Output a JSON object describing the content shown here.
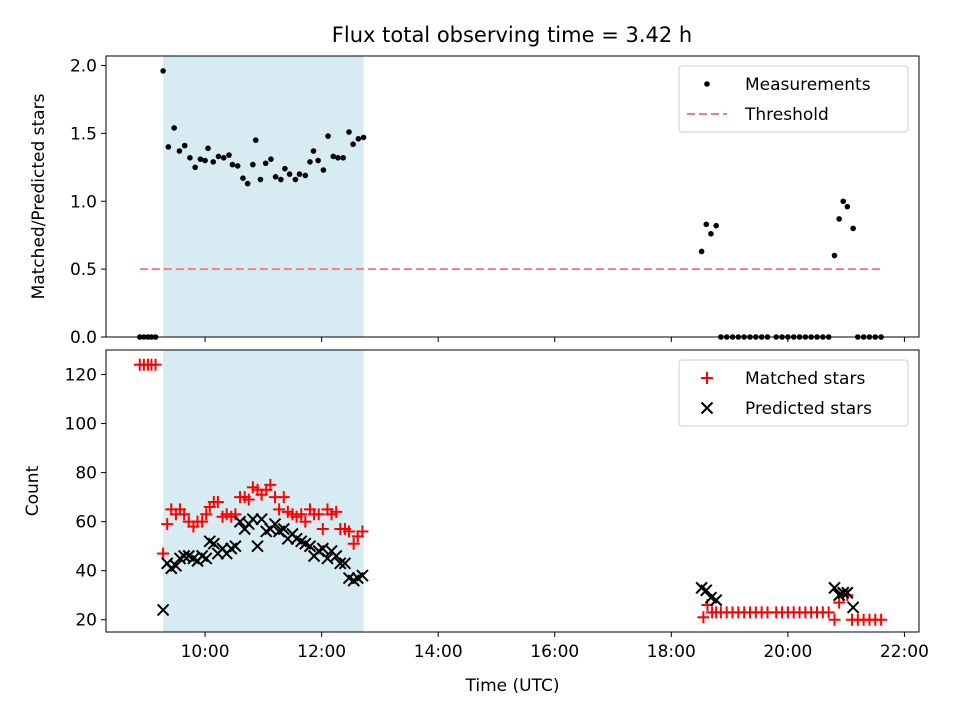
{
  "chart_data": [
    {
      "type": "scatter",
      "panel": "top",
      "title": "Flux total observing time = 3.42 h",
      "ylabel": "Matched/Predicted stars",
      "xlabel": "",
      "xlim": [
        8.3,
        22.25
      ],
      "ylim": [
        0,
        2.07
      ],
      "yticks": [
        0.0,
        0.5,
        1.0,
        1.5,
        2.0
      ],
      "ytick_labels": [
        "0.0",
        "0.5",
        "1.0",
        "1.5",
        "2.0"
      ],
      "xticks": [
        10,
        12,
        14,
        16,
        18,
        20,
        22
      ],
      "shaded_span": {
        "x_start": 9.28,
        "x_end": 12.72,
        "color": "#add8e6"
      },
      "legend_position": "top-right",
      "series": [
        {
          "name": "Measurements",
          "kind": "dots",
          "color": "#000000",
          "points": [
            [
              8.88,
              0
            ],
            [
              8.95,
              0
            ],
            [
              9.02,
              0
            ],
            [
              9.08,
              0
            ],
            [
              9.15,
              0
            ],
            [
              9.28,
              1.96
            ],
            [
              9.37,
              1.4
            ],
            [
              9.47,
              1.54
            ],
            [
              9.56,
              1.37
            ],
            [
              9.65,
              1.41
            ],
            [
              9.74,
              1.32
            ],
            [
              9.83,
              1.25
            ],
            [
              9.92,
              1.31
            ],
            [
              10.0,
              1.3
            ],
            [
              10.05,
              1.39
            ],
            [
              10.14,
              1.29
            ],
            [
              10.23,
              1.33
            ],
            [
              10.32,
              1.32
            ],
            [
              10.41,
              1.34
            ],
            [
              10.47,
              1.27
            ],
            [
              10.56,
              1.26
            ],
            [
              10.65,
              1.17
            ],
            [
              10.73,
              1.13
            ],
            [
              10.82,
              1.27
            ],
            [
              10.87,
              1.45
            ],
            [
              10.95,
              1.16
            ],
            [
              11.04,
              1.28
            ],
            [
              11.13,
              1.31
            ],
            [
              11.21,
              1.18
            ],
            [
              11.3,
              1.16
            ],
            [
              11.37,
              1.24
            ],
            [
              11.45,
              1.2
            ],
            [
              11.55,
              1.16
            ],
            [
              11.62,
              1.2
            ],
            [
              11.72,
              1.19
            ],
            [
              11.8,
              1.29
            ],
            [
              11.86,
              1.37
            ],
            [
              11.94,
              1.3
            ],
            [
              12.03,
              1.23
            ],
            [
              12.11,
              1.48
            ],
            [
              12.2,
              1.33
            ],
            [
              12.28,
              1.32
            ],
            [
              12.37,
              1.32
            ],
            [
              12.47,
              1.51
            ],
            [
              12.54,
              1.42
            ],
            [
              12.63,
              1.46
            ],
            [
              12.72,
              1.47
            ],
            [
              18.52,
              0.63
            ],
            [
              18.6,
              0.83
            ],
            [
              18.68,
              0.76
            ],
            [
              18.77,
              0.82
            ],
            [
              18.85,
              0
            ],
            [
              18.95,
              0
            ],
            [
              19.05,
              0
            ],
            [
              19.15,
              0
            ],
            [
              19.25,
              0
            ],
            [
              19.35,
              0
            ],
            [
              19.45,
              0
            ],
            [
              19.55,
              0
            ],
            [
              19.65,
              0
            ],
            [
              19.8,
              0
            ],
            [
              19.9,
              0
            ],
            [
              20.0,
              0
            ],
            [
              20.1,
              0
            ],
            [
              20.2,
              0
            ],
            [
              20.3,
              0
            ],
            [
              20.4,
              0
            ],
            [
              20.5,
              0
            ],
            [
              20.6,
              0
            ],
            [
              20.7,
              0
            ],
            [
              20.8,
              0.6
            ],
            [
              20.88,
              0.87
            ],
            [
              20.95,
              1.0
            ],
            [
              21.02,
              0.96
            ],
            [
              21.12,
              0.8
            ],
            [
              21.2,
              0
            ],
            [
              21.3,
              0
            ],
            [
              21.4,
              0
            ],
            [
              21.5,
              0
            ],
            [
              21.6,
              0
            ]
          ]
        },
        {
          "name": "Threshold",
          "kind": "dashed-line",
          "color": "#f08080",
          "x": [
            8.88,
            21.6
          ],
          "y": [
            0.5,
            0.5
          ]
        }
      ]
    },
    {
      "type": "scatter",
      "panel": "bottom",
      "title": "",
      "ylabel": "Count",
      "xlabel": "Time (UTC)",
      "xlim": [
        8.3,
        22.25
      ],
      "ylim": [
        15,
        130
      ],
      "yticks": [
        20,
        40,
        60,
        80,
        100,
        120
      ],
      "ytick_labels": [
        "20",
        "40",
        "60",
        "80",
        "100",
        "120"
      ],
      "xticks": [
        10,
        12,
        14,
        16,
        18,
        20,
        22
      ],
      "xtick_labels": [
        "10:00",
        "12:00",
        "14:00",
        "16:00",
        "18:00",
        "20:00",
        "22:00"
      ],
      "shaded_span": {
        "x_start": 9.28,
        "x_end": 12.72,
        "color": "#add8e6"
      },
      "legend_position": "top-right",
      "series": [
        {
          "name": "Matched stars",
          "kind": "plus",
          "color": "#ff0000",
          "points": [
            [
              8.88,
              124
            ],
            [
              8.95,
              124
            ],
            [
              9.02,
              124
            ],
            [
              9.08,
              124
            ],
            [
              9.15,
              124
            ],
            [
              9.28,
              47
            ],
            [
              9.35,
              59
            ],
            [
              9.42,
              65
            ],
            [
              9.5,
              63
            ],
            [
              9.57,
              65
            ],
            [
              9.64,
              63
            ],
            [
              9.72,
              60
            ],
            [
              9.8,
              58
            ],
            [
              9.87,
              60
            ],
            [
              9.95,
              60
            ],
            [
              10.02,
              63
            ],
            [
              10.08,
              66
            ],
            [
              10.15,
              68
            ],
            [
              10.22,
              68
            ],
            [
              10.3,
              62
            ],
            [
              10.37,
              63
            ],
            [
              10.45,
              62
            ],
            [
              10.52,
              63
            ],
            [
              10.6,
              70
            ],
            [
              10.68,
              70
            ],
            [
              10.75,
              69
            ],
            [
              10.82,
              74
            ],
            [
              10.9,
              73
            ],
            [
              10.97,
              71
            ],
            [
              11.05,
              73
            ],
            [
              11.12,
              75
            ],
            [
              11.2,
              70
            ],
            [
              11.27,
              65
            ],
            [
              11.35,
              70
            ],
            [
              11.42,
              64
            ],
            [
              11.5,
              63
            ],
            [
              11.57,
              62
            ],
            [
              11.65,
              63
            ],
            [
              11.72,
              60
            ],
            [
              11.8,
              65
            ],
            [
              11.87,
              63
            ],
            [
              11.95,
              63
            ],
            [
              12.02,
              57
            ],
            [
              12.1,
              65
            ],
            [
              12.17,
              63
            ],
            [
              12.25,
              64
            ],
            [
              12.32,
              57
            ],
            [
              12.4,
              57
            ],
            [
              12.47,
              56
            ],
            [
              12.55,
              51
            ],
            [
              12.62,
              54
            ],
            [
              12.7,
              56
            ],
            [
              18.55,
              21
            ],
            [
              18.62,
              26
            ],
            [
              18.7,
              23
            ],
            [
              18.77,
              23
            ],
            [
              18.85,
              23
            ],
            [
              18.95,
              23
            ],
            [
              19.05,
              23
            ],
            [
              19.15,
              23
            ],
            [
              19.25,
              23
            ],
            [
              19.35,
              23
            ],
            [
              19.45,
              23
            ],
            [
              19.55,
              23
            ],
            [
              19.65,
              23
            ],
            [
              19.8,
              23
            ],
            [
              19.9,
              23
            ],
            [
              20.0,
              23
            ],
            [
              20.1,
              23
            ],
            [
              20.2,
              23
            ],
            [
              20.3,
              23
            ],
            [
              20.4,
              23
            ],
            [
              20.5,
              23
            ],
            [
              20.6,
              23
            ],
            [
              20.7,
              23
            ],
            [
              20.8,
              20
            ],
            [
              20.88,
              27
            ],
            [
              20.95,
              30
            ],
            [
              21.02,
              30
            ],
            [
              21.1,
              20
            ],
            [
              21.2,
              20
            ],
            [
              21.3,
              20
            ],
            [
              21.4,
              20
            ],
            [
              21.5,
              20
            ],
            [
              21.6,
              20
            ]
          ]
        },
        {
          "name": "Predicted stars",
          "kind": "cross",
          "color": "#000000",
          "points": [
            [
              9.28,
              24
            ],
            [
              9.35,
              43
            ],
            [
              9.42,
              41
            ],
            [
              9.5,
              42
            ],
            [
              9.57,
              45
            ],
            [
              9.64,
              46
            ],
            [
              9.72,
              46
            ],
            [
              9.8,
              45
            ],
            [
              9.87,
              44
            ],
            [
              9.95,
              46
            ],
            [
              10.02,
              45
            ],
            [
              10.08,
              52
            ],
            [
              10.15,
              51
            ],
            [
              10.22,
              47
            ],
            [
              10.3,
              49
            ],
            [
              10.37,
              47
            ],
            [
              10.45,
              49
            ],
            [
              10.52,
              50
            ],
            [
              10.6,
              60
            ],
            [
              10.68,
              57
            ],
            [
              10.75,
              59
            ],
            [
              10.82,
              61
            ],
            [
              10.9,
              50
            ],
            [
              10.97,
              61
            ],
            [
              11.05,
              56
            ],
            [
              11.12,
              57
            ],
            [
              11.2,
              59
            ],
            [
              11.27,
              56
            ],
            [
              11.35,
              57
            ],
            [
              11.42,
              53
            ],
            [
              11.5,
              55
            ],
            [
              11.57,
              53
            ],
            [
              11.65,
              52
            ],
            [
              11.72,
              51
            ],
            [
              11.8,
              50
            ],
            [
              11.87,
              46
            ],
            [
              11.95,
              48
            ],
            [
              12.02,
              49
            ],
            [
              12.1,
              45
            ],
            [
              12.17,
              48
            ],
            [
              12.25,
              46
            ],
            [
              12.32,
              43
            ],
            [
              12.4,
              43
            ],
            [
              12.47,
              37
            ],
            [
              12.55,
              36
            ],
            [
              12.62,
              37
            ],
            [
              12.7,
              38
            ],
            [
              18.52,
              33
            ],
            [
              18.6,
              32
            ],
            [
              18.68,
              29
            ],
            [
              18.77,
              28
            ],
            [
              20.8,
              33
            ],
            [
              20.88,
              30
            ],
            [
              20.95,
              31
            ],
            [
              21.02,
              31
            ],
            [
              21.12,
              25
            ]
          ]
        }
      ]
    }
  ]
}
